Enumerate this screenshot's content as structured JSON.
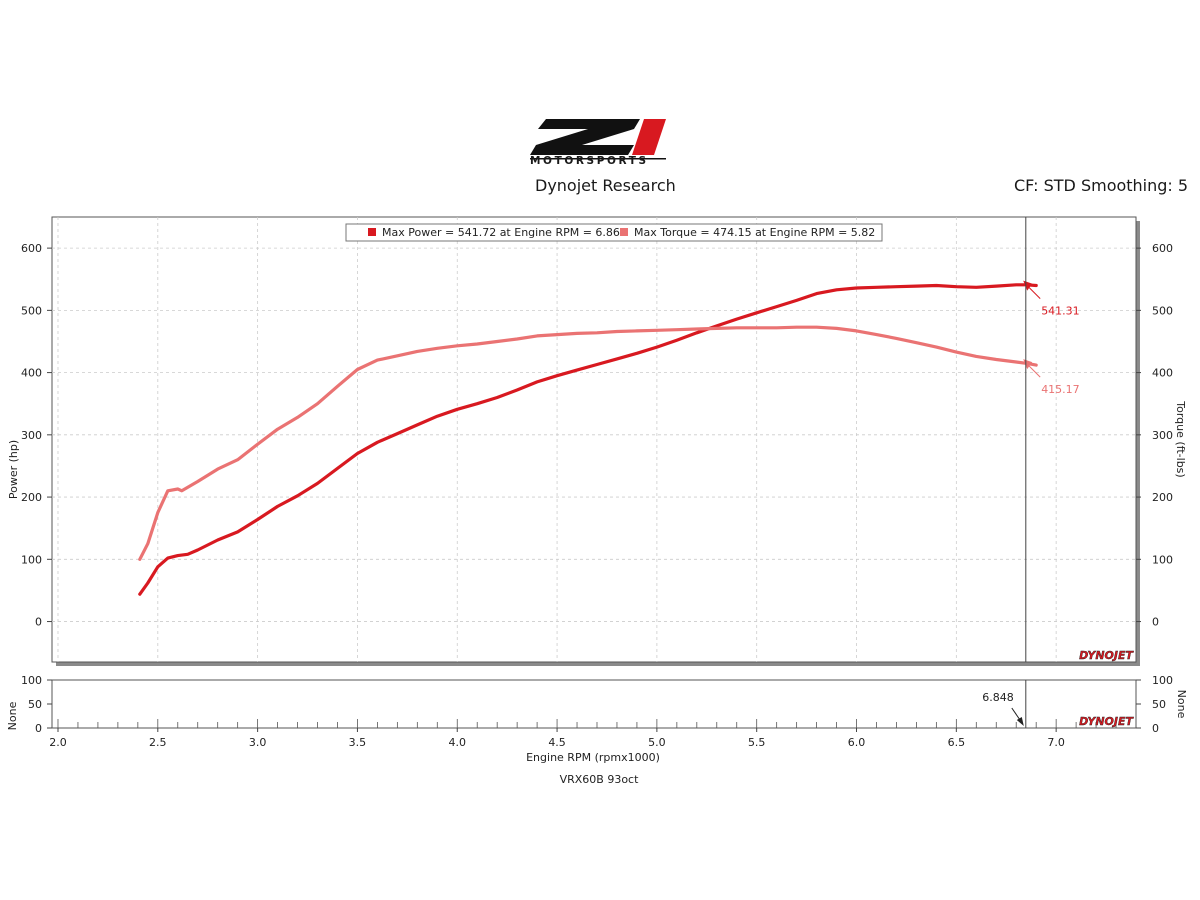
{
  "header": {
    "logo_mark": "Z1",
    "logo_text": "MOTORSPORTS",
    "subtitle": "Dynojet Research",
    "cf_text": "CF: STD Smoothing: 5"
  },
  "colors": {
    "power": "#d81920",
    "torque": "#ea7373",
    "accent": "#d81920"
  },
  "chart_data": {
    "type": "line",
    "title": "Dynojet Research",
    "xlabel": "Engine RPM (rpmx1000)",
    "caption": "VRX60B 93oct",
    "xlim": [
      1.97,
      7.4
    ],
    "x_ticks": [
      "2.0",
      "2.5",
      "3.0",
      "3.5",
      "4.0",
      "4.5",
      "5.0",
      "5.5",
      "6.0",
      "6.5",
      "7.0"
    ],
    "main": {
      "ylabel_left": "Power (hp)",
      "ylabel_right": "Torque (ft-lbs)",
      "ylim": [
        -65,
        650
      ],
      "y_ticks": [
        "0",
        "100",
        "200",
        "300",
        "400",
        "500",
        "600"
      ],
      "grid": true,
      "legend_position": "top-center"
    },
    "legend": [
      {
        "label": "Max Power = 541.72 at Engine RPM = 6.86",
        "color": "#d81920"
      },
      {
        "label": "Max Torque = 474.15 at Engine RPM = 5.82",
        "color": "#ea7373"
      }
    ],
    "series": [
      {
        "name": "Power",
        "color": "#d81920",
        "x": [
          2.41,
          2.45,
          2.5,
          2.55,
          2.6,
          2.65,
          2.7,
          2.8,
          2.9,
          3.0,
          3.1,
          3.2,
          3.3,
          3.4,
          3.5,
          3.6,
          3.7,
          3.8,
          3.9,
          4.0,
          4.1,
          4.2,
          4.3,
          4.4,
          4.5,
          4.6,
          4.7,
          4.8,
          4.9,
          5.0,
          5.1,
          5.2,
          5.3,
          5.4,
          5.5,
          5.6,
          5.7,
          5.8,
          5.9,
          6.0,
          6.1,
          6.2,
          6.3,
          6.4,
          6.5,
          6.6,
          6.7,
          6.8,
          6.85,
          6.9
        ],
        "values": [
          44,
          62,
          88,
          102,
          106,
          108,
          115,
          131,
          144,
          164,
          185,
          202,
          222,
          246,
          270,
          288,
          302,
          316,
          330,
          341,
          350,
          360,
          372,
          385,
          395,
          404,
          413,
          422,
          431,
          441,
          452,
          464,
          475,
          486,
          496,
          506,
          516,
          527,
          533,
          536,
          537,
          538,
          539,
          540,
          538,
          537,
          539,
          541,
          541,
          540
        ]
      },
      {
        "name": "Torque",
        "color": "#ea7373",
        "x": [
          2.41,
          2.45,
          2.5,
          2.55,
          2.6,
          2.62,
          2.7,
          2.8,
          2.9,
          3.0,
          3.1,
          3.2,
          3.3,
          3.4,
          3.5,
          3.6,
          3.7,
          3.8,
          3.9,
          4.0,
          4.1,
          4.2,
          4.3,
          4.4,
          4.5,
          4.6,
          4.7,
          4.8,
          4.9,
          5.0,
          5.1,
          5.2,
          5.3,
          5.4,
          5.5,
          5.6,
          5.7,
          5.8,
          5.9,
          6.0,
          6.1,
          6.2,
          6.3,
          6.4,
          6.5,
          6.6,
          6.7,
          6.8,
          6.85,
          6.9
        ],
        "values": [
          100,
          125,
          175,
          210,
          213,
          210,
          225,
          245,
          260,
          285,
          309,
          328,
          350,
          378,
          405,
          420,
          427,
          434,
          439,
          443,
          446,
          450,
          454,
          459,
          461,
          463,
          464,
          466,
          467,
          468,
          469,
          470,
          471,
          472,
          472,
          472,
          473,
          473,
          471,
          467,
          461,
          455,
          448,
          441,
          433,
          426,
          421,
          417,
          415,
          412
        ]
      }
    ],
    "annotations": [
      {
        "label": "541.31",
        "x": 6.85,
        "y": 541.31,
        "color": "#d81920"
      },
      {
        "label": "415.17",
        "x": 6.85,
        "y": 415.17,
        "color": "#ea7373"
      }
    ],
    "cursor_x": 6.848,
    "watermark": "DYNOJET",
    "sub": {
      "ylabel_left": "None",
      "ylabel_right": "None",
      "ylim": [
        0,
        100
      ],
      "y_ticks": [
        "0",
        "50",
        "100"
      ],
      "cursor_label": "6.848"
    }
  }
}
